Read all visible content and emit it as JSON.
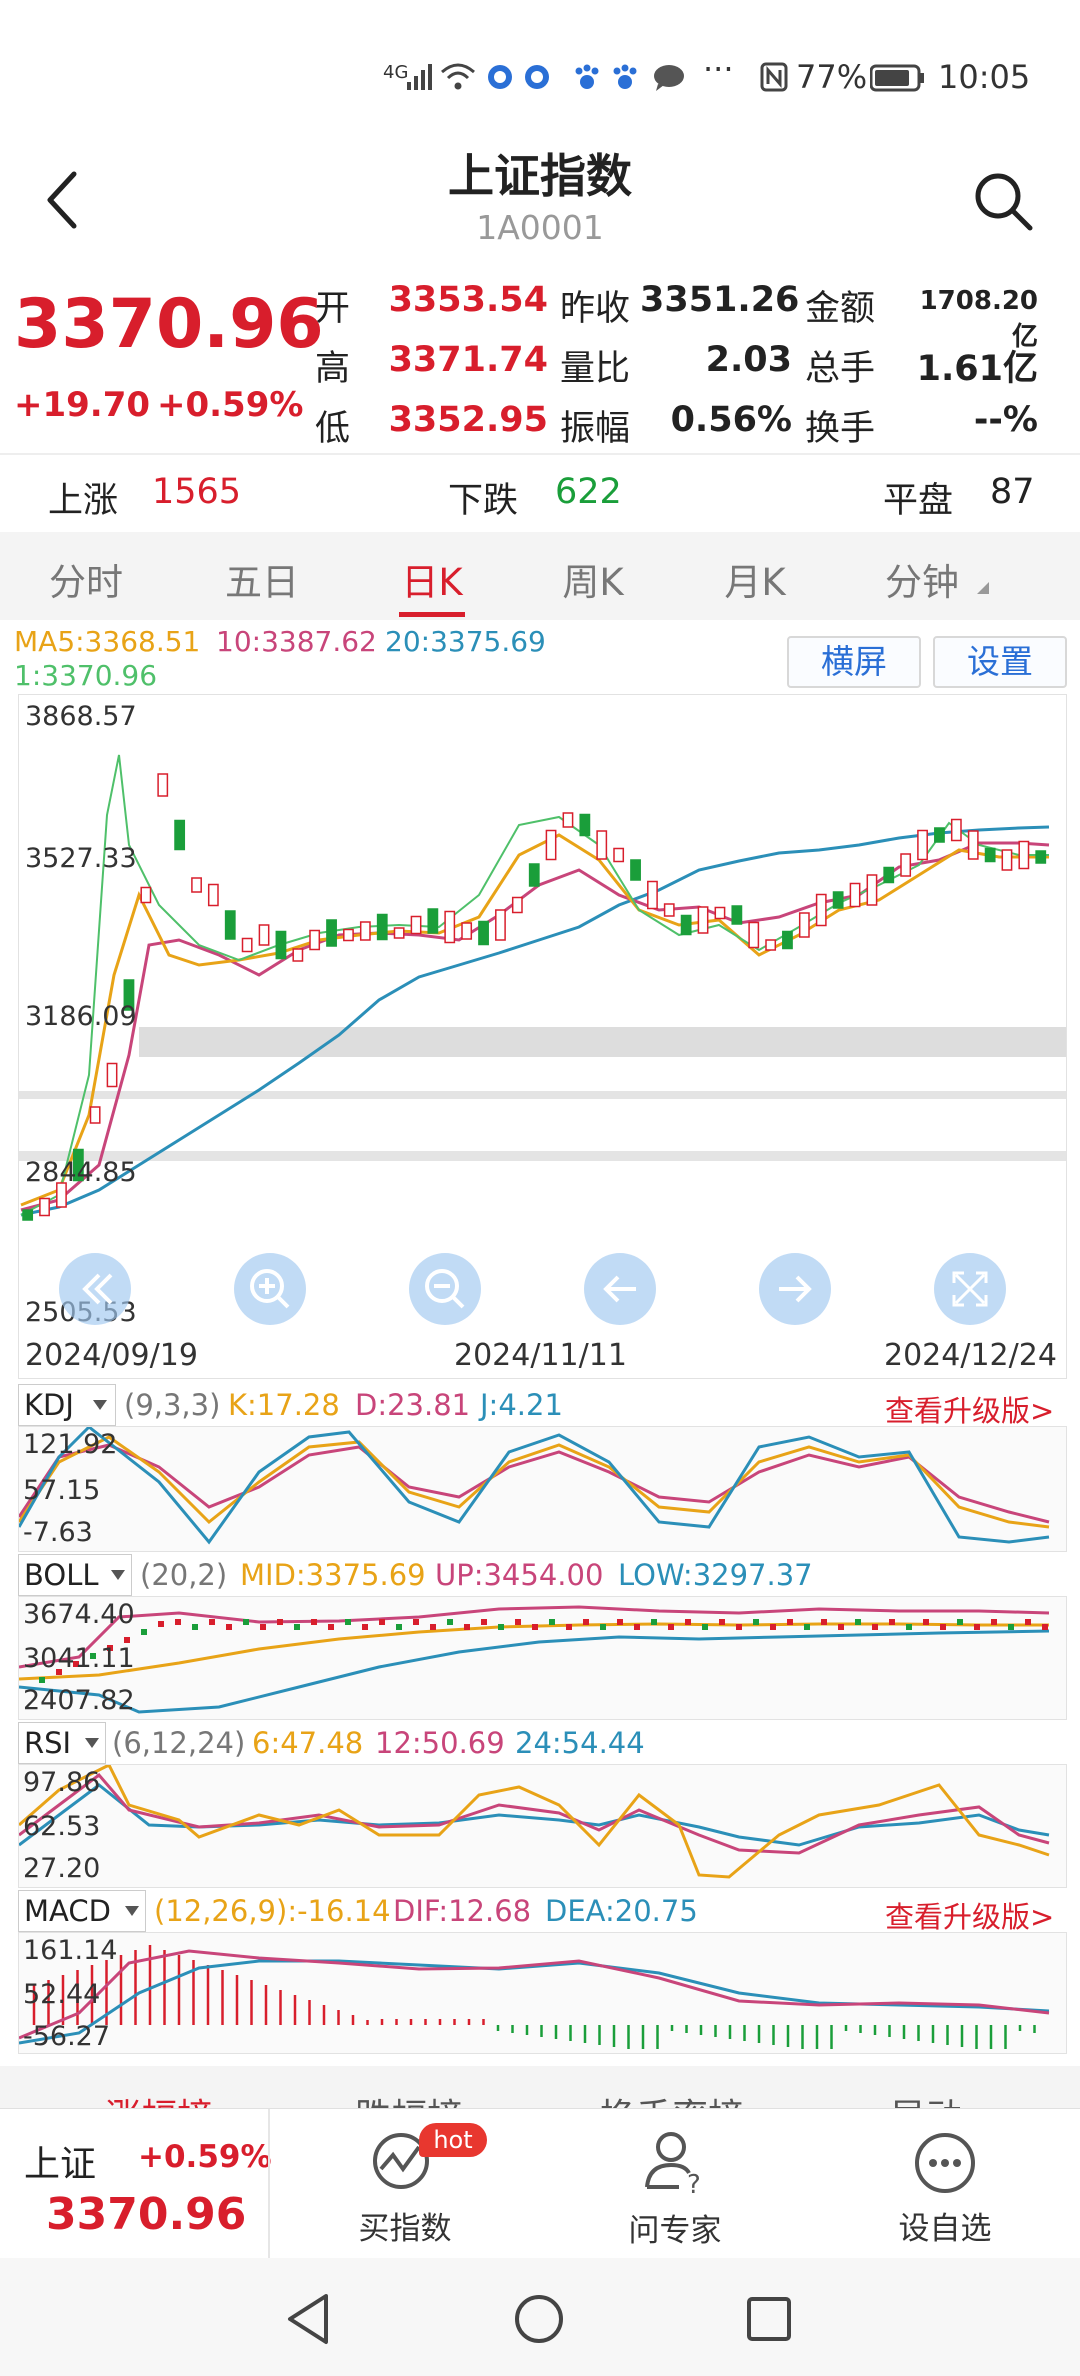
{
  "status_bar": {
    "network": "4G",
    "battery": "77%",
    "time": "10:05"
  },
  "header": {
    "title": "上证指数",
    "code": "1A0001"
  },
  "quote": {
    "price": "3370.96",
    "change": "+19.70",
    "change_pct": "+0.59%",
    "open_label": "开",
    "open": "3353.54",
    "prev_close_label": "昨收",
    "prev_close": "3351.26",
    "amount_label": "金额",
    "amount": "1708.20亿",
    "high_label": "高",
    "high": "3371.74",
    "volume_ratio_label": "量比",
    "volume_ratio": "2.03",
    "total_volume_label": "总手",
    "total_volume": "1.61亿",
    "low_label": "低",
    "low": "3352.95",
    "amplitude_label": "振幅",
    "amplitude": "0.56%",
    "turnover_label": "换手",
    "turnover": "--%"
  },
  "breadth": {
    "up_label": "上涨",
    "up": "1565",
    "down_label": "下跌",
    "down": "622",
    "flat_label": "平盘",
    "flat": "87"
  },
  "tabs": [
    {
      "label": "分时",
      "active": false
    },
    {
      "label": "五日",
      "active": false
    },
    {
      "label": "日K",
      "active": true
    },
    {
      "label": "周K",
      "active": false
    },
    {
      "label": "月K",
      "active": false
    },
    {
      "label": "分钟",
      "active": false
    }
  ],
  "ma_legend": {
    "ma5": "MA5:3368.51",
    "ma10": "10:3387.62",
    "ma20": "20:3375.69",
    "ma1": "1:3370.96"
  },
  "buttons": {
    "landscape": "横屏",
    "settings": "设置",
    "upgrade": "查看升级版>"
  },
  "colors": {
    "up": "#d81e2c",
    "down": "#1a9e3a",
    "ma5": "#e8a317",
    "ma10": "#c8457a",
    "ma20": "#2b8fb8"
  },
  "main_chart": {
    "y_ticks": [
      "3868.57",
      "3527.33",
      "3186.09",
      "2844.85",
      "2505.53"
    ],
    "x_ticks": [
      "2024/09/19",
      "2024/11/11",
      "2024/12/24"
    ],
    "controls": [
      "rewind-icon",
      "zoom-in-icon",
      "zoom-out-icon",
      "arrow-left-icon",
      "arrow-right-icon",
      "fullscreen-icon"
    ]
  },
  "kdj": {
    "name": "KDJ",
    "params": "(9,3,3)",
    "k": "K:17.28",
    "d": "D:23.81",
    "j": "J:4.21",
    "y_ticks": [
      "121.92",
      "57.15",
      "-7.63"
    ]
  },
  "boll": {
    "name": "BOLL",
    "params": "(20,2)",
    "mid": "MID:3375.69",
    "up": "UP:3454.00",
    "low": "LOW:3297.37",
    "y_ticks": [
      "3674.40",
      "3041.11",
      "2407.82"
    ]
  },
  "rsi": {
    "name": "RSI",
    "params": "(6,12,24)",
    "r6": "6:47.48",
    "r12": "12:50.69",
    "r24": "24:54.44",
    "y_ticks": [
      "97.86",
      "62.53",
      "27.20"
    ]
  },
  "macd": {
    "name": "MACD",
    "params": "(12,26,9):-16.14",
    "dif": "DIF:12.68",
    "dea": "DEA:20.75",
    "y_ticks": [
      "161.14",
      "52.44",
      "-56.27"
    ]
  },
  "bottom_strip": [
    "涨幅榜",
    "跌幅榜",
    "换手率榜",
    "异动"
  ],
  "bottom_bar": {
    "name": "上证",
    "pct": "+0.59%",
    "price": "3370.96",
    "buy_index": "买指数",
    "hot_badge": "hot",
    "ask_expert": "问专家",
    "add_watch": "设自选"
  }
}
